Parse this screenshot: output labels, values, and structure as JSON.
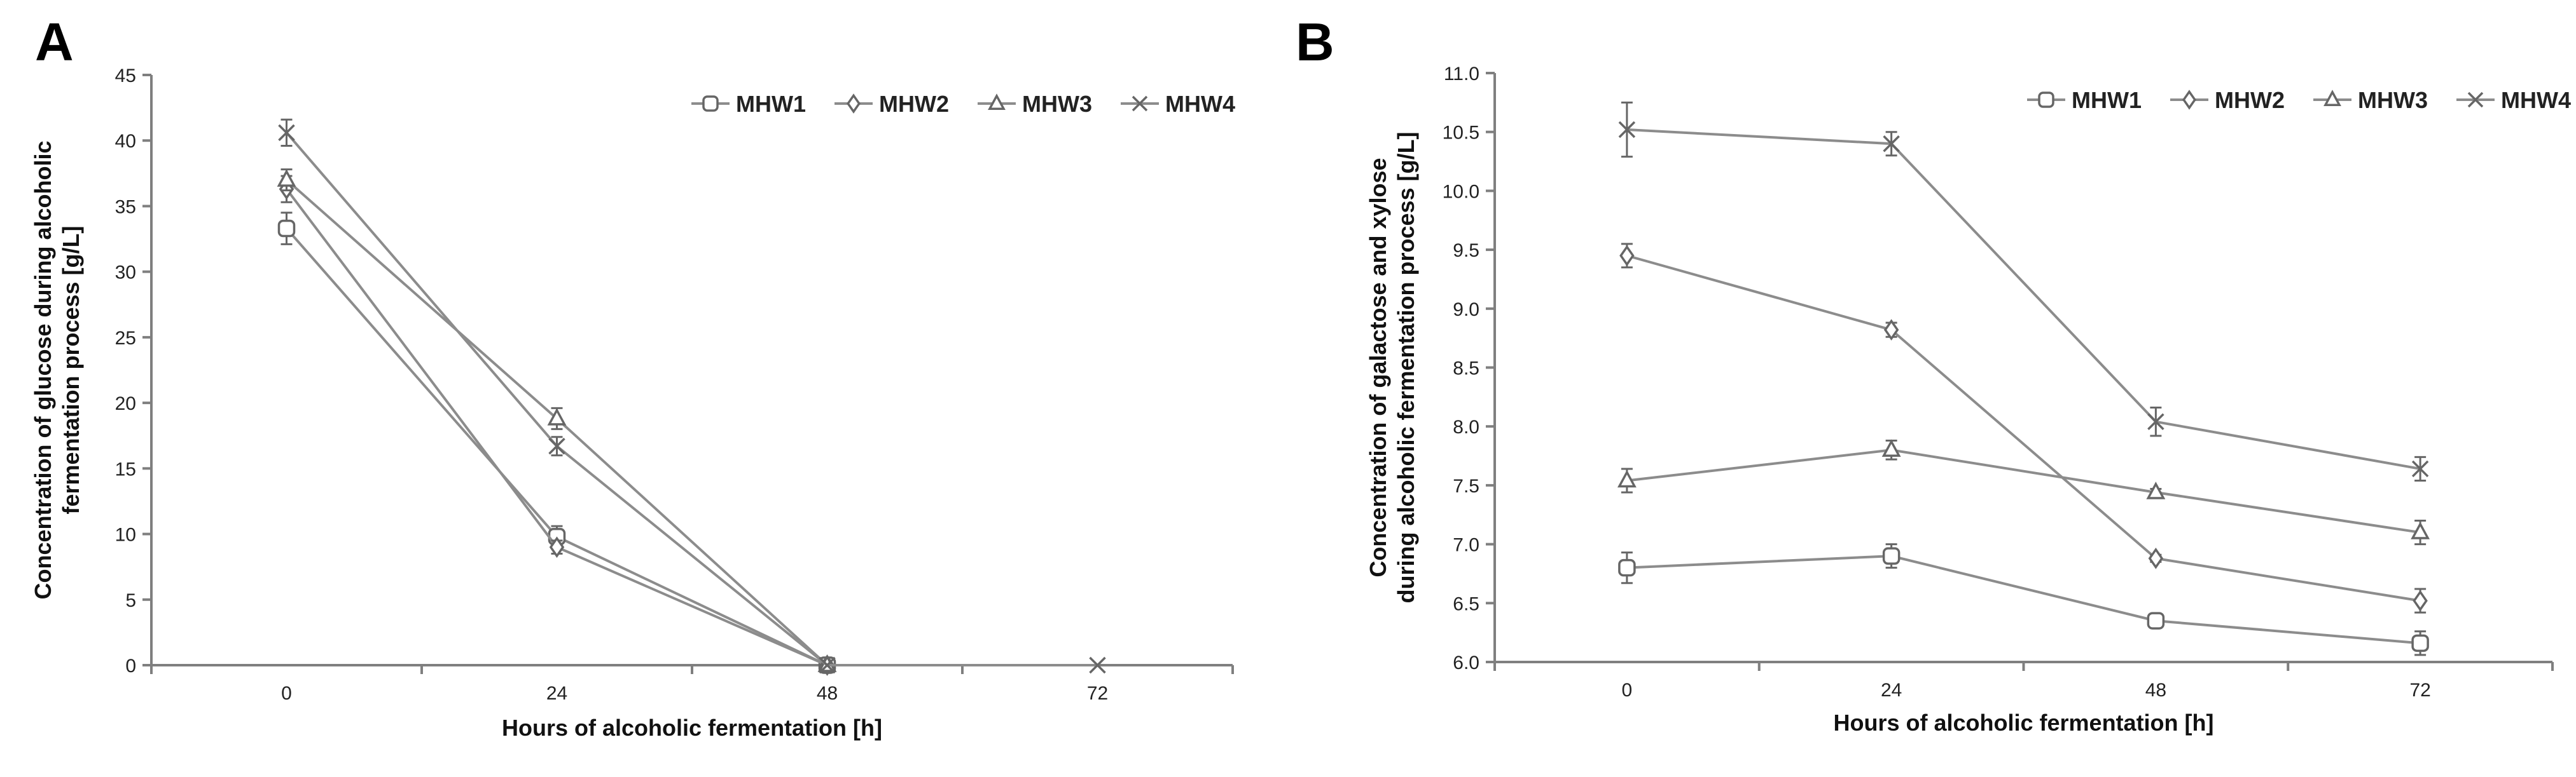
{
  "chart_data": [
    {
      "type": "line",
      "panel_label": "A",
      "categories": [
        "0",
        "24",
        "48",
        "72"
      ],
      "x": [
        0,
        24,
        48,
        72
      ],
      "xlabel": "Hours of alcoholic fermentation [h]",
      "ylabel_lines": [
        "Concentration of glucose during alcoholic",
        "fermentation process [g/L]"
      ],
      "ylim": [
        0,
        45
      ],
      "yticks": [
        0,
        5,
        10,
        15,
        20,
        25,
        30,
        35,
        40,
        45
      ],
      "ytick_labels": [
        "0",
        "5",
        "10",
        "15",
        "20",
        "25",
        "30",
        "35",
        "40",
        "45"
      ],
      "legend_position": "top-right",
      "series": [
        {
          "name": "MHW1",
          "marker": "square",
          "values": [
            33.3,
            9.8,
            0,
            null
          ],
          "errors": [
            1.2,
            0.8,
            0,
            null
          ]
        },
        {
          "name": "MHW2",
          "marker": "diamond",
          "values": [
            36.3,
            9.0,
            0,
            null
          ],
          "errors": [
            1.0,
            0.5,
            0,
            null
          ]
        },
        {
          "name": "MHW3",
          "marker": "triangle",
          "values": [
            37.0,
            18.8,
            0,
            null
          ],
          "errors": [
            0.8,
            0.8,
            0,
            null
          ]
        },
        {
          "name": "MHW4",
          "marker": "x",
          "values": [
            40.6,
            16.7,
            0,
            0
          ],
          "errors": [
            1.0,
            0.7,
            0,
            0
          ]
        }
      ]
    },
    {
      "type": "line",
      "panel_label": "B",
      "categories": [
        "0",
        "24",
        "48",
        "72"
      ],
      "x": [
        0,
        24,
        48,
        72
      ],
      "xlabel": "Hours of alcoholic fermentation [h]",
      "ylabel_lines": [
        "Concentration of galactose and xylose",
        "during alcoholic fermentation process [g/L]"
      ],
      "ylim": [
        6.0,
        11.0
      ],
      "yticks": [
        6.0,
        6.5,
        7.0,
        7.5,
        8.0,
        8.5,
        9.0,
        9.5,
        10.0,
        10.5,
        11.0
      ],
      "ytick_labels": [
        "6.0",
        "6.5",
        "7.0",
        "7.5",
        "8.0",
        "8.5",
        "9.0",
        "9.5",
        "10.0",
        "10.5",
        "11.0"
      ],
      "legend_position": "top-right",
      "series": [
        {
          "name": "MHW1",
          "marker": "square",
          "values": [
            6.8,
            6.9,
            6.35,
            6.16
          ],
          "errors": [
            0.13,
            0.1,
            0.04,
            0.1
          ]
        },
        {
          "name": "MHW2",
          "marker": "diamond",
          "values": [
            9.45,
            8.82,
            6.88,
            6.52
          ],
          "errors": [
            0.1,
            0.06,
            0.03,
            0.1
          ]
        },
        {
          "name": "MHW3",
          "marker": "triangle",
          "values": [
            7.54,
            7.8,
            7.44,
            7.1
          ],
          "errors": [
            0.1,
            0.08,
            0.03,
            0.1
          ]
        },
        {
          "name": "MHW4",
          "marker": "x",
          "values": [
            10.52,
            10.4,
            8.04,
            7.64
          ],
          "errors": [
            0.23,
            0.1,
            0.12,
            0.1
          ]
        }
      ]
    }
  ]
}
